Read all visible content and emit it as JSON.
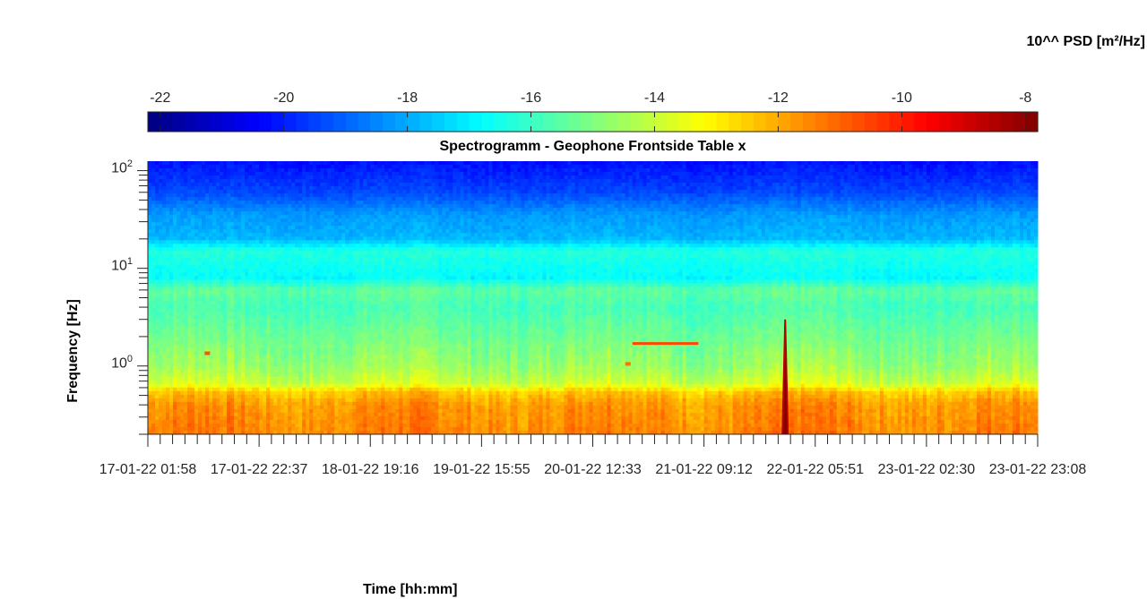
{
  "chart_data": {
    "type": "heatmap",
    "title": "Spectrogramm - Geophone Frontside Table x",
    "xlabel": "Time [hh:mm]",
    "ylabel": "Frequency [Hz]",
    "colorbar_label": "10^^ PSD [m²/Hz]",
    "colormap": "jet",
    "y_scale": "log",
    "y_range_hz": [
      0.2,
      125
    ],
    "y_ticks": [
      {
        "base": "10",
        "exp": "0"
      },
      {
        "base": "10",
        "exp": "1"
      },
      {
        "base": "10",
        "exp": "2"
      }
    ],
    "x_range": [
      "17-01-22 01:58",
      "23-01-22 23:08"
    ],
    "x_ticks": [
      "17-01-22 01:58",
      "17-01-22 22:37",
      "18-01-22 19:16",
      "19-01-22 15:55",
      "20-01-22 12:33",
      "21-01-22 09:12",
      "22-01-22 05:51",
      "23-01-22 02:30",
      "23-01-22 23:08"
    ],
    "color_range": [
      -22.2,
      -7.8
    ],
    "color_ticks": [
      -22,
      -20,
      -18,
      -16,
      -14,
      -12,
      -10,
      -8
    ],
    "frequency_profile": [
      {
        "f": 0.2,
        "psd": -11.4
      },
      {
        "f": 0.4,
        "psd": -11.7
      },
      {
        "f": 0.55,
        "psd": -12.4
      },
      {
        "f": 0.65,
        "psd": -13.8
      },
      {
        "f": 1.0,
        "psd": -14.6
      },
      {
        "f": 2.0,
        "psd": -15.2
      },
      {
        "f": 4.0,
        "psd": -15.8
      },
      {
        "f": 6.0,
        "psd": -15.4
      },
      {
        "f": 8.0,
        "psd": -16.8
      },
      {
        "f": 15.0,
        "psd": -16.3
      },
      {
        "f": 20.0,
        "psd": -17.8
      },
      {
        "f": 35.0,
        "psd": -18.2
      },
      {
        "f": 60.0,
        "psd": -19.4
      },
      {
        "f": 125.0,
        "psd": -20.2
      }
    ],
    "events": [
      {
        "label": "spike",
        "t": "22-01-22 00:16",
        "f_max": 3.0,
        "psd": -8.6
      },
      {
        "label": "tone",
        "t_start": "20-01-22 19:55",
        "t_end": "21-01-22 08:10",
        "f": 1.7,
        "psd": -10.6
      },
      {
        "label": "blip",
        "t": "17-01-22 13:00",
        "f": 1.35,
        "psd": -10.8
      },
      {
        "label": "blip",
        "t": "20-01-22 19:05",
        "f": 1.05,
        "psd": -11.2
      }
    ]
  }
}
